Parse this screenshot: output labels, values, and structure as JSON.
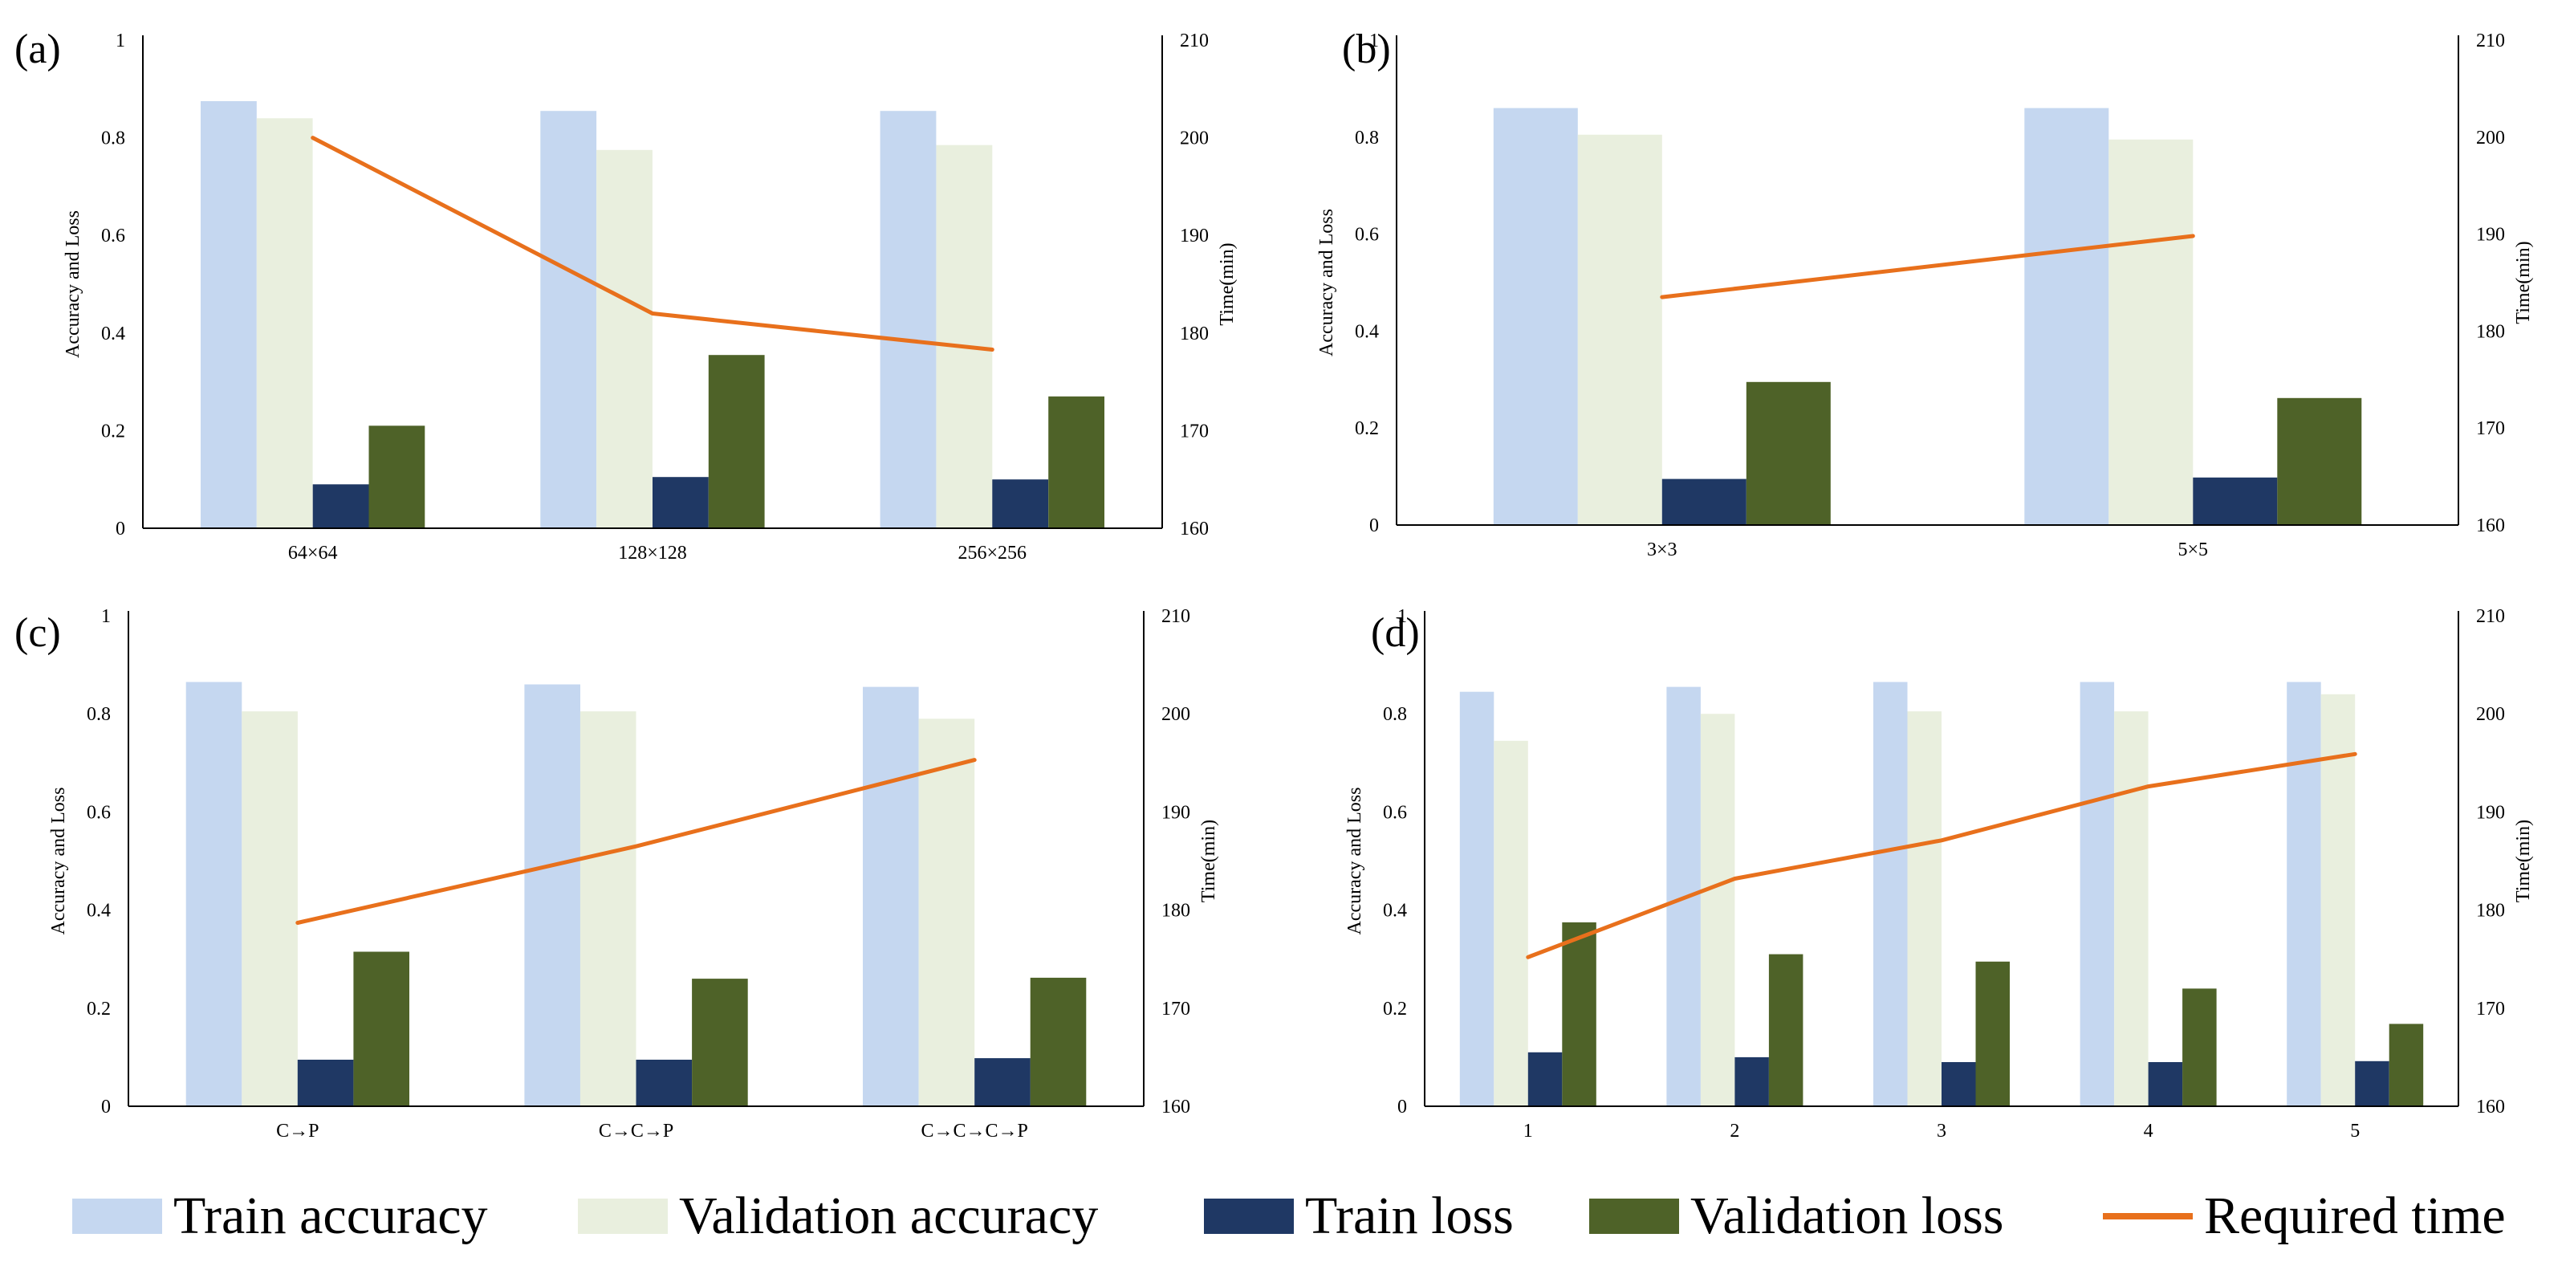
{
  "colors": {
    "train_accuracy": "#c5d7f0",
    "validation_accuracy": "#e9efde",
    "train_loss": "#1f3864",
    "validation_loss": "#4e6228",
    "required_time": "#e8701c",
    "axis": "#000000"
  },
  "legend": [
    {
      "key": "train_accuracy",
      "label": "Train accuracy",
      "kind": "bar"
    },
    {
      "key": "validation_accuracy",
      "label": "Validation accuracy",
      "kind": "bar"
    },
    {
      "key": "train_loss",
      "label": "Train loss",
      "kind": "bar"
    },
    {
      "key": "validation_loss",
      "label": "Validation loss",
      "kind": "bar"
    },
    {
      "key": "required_time",
      "label": "Required time",
      "kind": "line"
    }
  ],
  "chart_data": [
    {
      "panel_label": "(a)",
      "type": "bar",
      "ylabel": "Accuracy and Loss",
      "y2label": "Time(min)",
      "ylim": [
        0,
        1
      ],
      "y2lim": [
        160,
        210
      ],
      "yticks": [
        "0",
        "0.2",
        "0.4",
        "0.6",
        "0.8",
        "1"
      ],
      "y2ticks": [
        "160",
        "170",
        "180",
        "190",
        "200",
        "210"
      ],
      "categories": [
        "64×64",
        "128×128",
        "256×256"
      ],
      "series": [
        {
          "name": "Train accuracy",
          "values": [
            0.875,
            0.855,
            0.855
          ]
        },
        {
          "name": "Validation accuracy",
          "values": [
            0.84,
            0.775,
            0.785
          ]
        },
        {
          "name": "Train loss",
          "values": [
            0.09,
            0.105,
            0.1
          ]
        },
        {
          "name": "Validation loss",
          "values": [
            0.21,
            0.355,
            0.27
          ]
        }
      ],
      "line": {
        "name": "Required time",
        "values": [
          200,
          182,
          178.3
        ]
      }
    },
    {
      "panel_label": "(b)",
      "type": "bar",
      "ylabel": "Accuracy and Loss",
      "y2label": "Time(min)",
      "ylim": [
        0,
        1
      ],
      "y2lim": [
        160,
        210
      ],
      "yticks": [
        "0",
        "0.2",
        "0.4",
        "0.6",
        "0.8",
        "1"
      ],
      "y2ticks": [
        "160",
        "170",
        "180",
        "190",
        "200",
        "210"
      ],
      "categories": [
        "3×3",
        "5×5"
      ],
      "series": [
        {
          "name": "Train accuracy",
          "values": [
            0.86,
            0.86
          ]
        },
        {
          "name": "Validation accuracy",
          "values": [
            0.805,
            0.795
          ]
        },
        {
          "name": "Train loss",
          "values": [
            0.095,
            0.098
          ]
        },
        {
          "name": "Validation loss",
          "values": [
            0.295,
            0.262
          ]
        }
      ],
      "line": {
        "name": "Required time",
        "values": [
          183.5,
          189.8
        ]
      }
    },
    {
      "panel_label": "(c)",
      "type": "bar",
      "ylabel": "Accuracy and Loss",
      "y2label": "Time(min)",
      "ylim": [
        0,
        1
      ],
      "y2lim": [
        160,
        210
      ],
      "yticks": [
        "0",
        "0.2",
        "0.4",
        "0.6",
        "0.8",
        "1"
      ],
      "y2ticks": [
        "160",
        "170",
        "180",
        "190",
        "200",
        "210"
      ],
      "categories": [
        "C→P",
        "C→C→P",
        "C→C→C→P"
      ],
      "series": [
        {
          "name": "Train accuracy",
          "values": [
            0.865,
            0.86,
            0.855
          ]
        },
        {
          "name": "Validation accuracy",
          "values": [
            0.805,
            0.805,
            0.79
          ]
        },
        {
          "name": "Train loss",
          "values": [
            0.095,
            0.095,
            0.098
          ]
        },
        {
          "name": "Validation loss",
          "values": [
            0.315,
            0.26,
            0.262
          ]
        }
      ],
      "line": {
        "name": "Required time",
        "values": [
          178.7,
          186.5,
          195.3
        ]
      }
    },
    {
      "panel_label": "(d)",
      "type": "bar",
      "ylabel": "Accuracy and Loss",
      "y2label": "Time(min)",
      "ylim": [
        0,
        1
      ],
      "y2lim": [
        160,
        210
      ],
      "yticks": [
        "0",
        "0.2",
        "0.4",
        "0.6",
        "0.8",
        "1"
      ],
      "y2ticks": [
        "160",
        "170",
        "180",
        "190",
        "200",
        "210"
      ],
      "categories": [
        "1",
        "2",
        "3",
        "4",
        "5"
      ],
      "series": [
        {
          "name": "Train accuracy",
          "values": [
            0.845,
            0.855,
            0.865,
            0.865,
            0.865
          ]
        },
        {
          "name": "Validation accuracy",
          "values": [
            0.745,
            0.8,
            0.805,
            0.805,
            0.84
          ]
        },
        {
          "name": "Train loss",
          "values": [
            0.11,
            0.1,
            0.09,
            0.09,
            0.092
          ]
        },
        {
          "name": "Validation loss",
          "values": [
            0.375,
            0.31,
            0.295,
            0.24,
            0.168
          ]
        }
      ],
      "line": {
        "name": "Required time",
        "values": [
          175.2,
          183.2,
          187.1,
          192.6,
          195.9
        ]
      }
    }
  ]
}
